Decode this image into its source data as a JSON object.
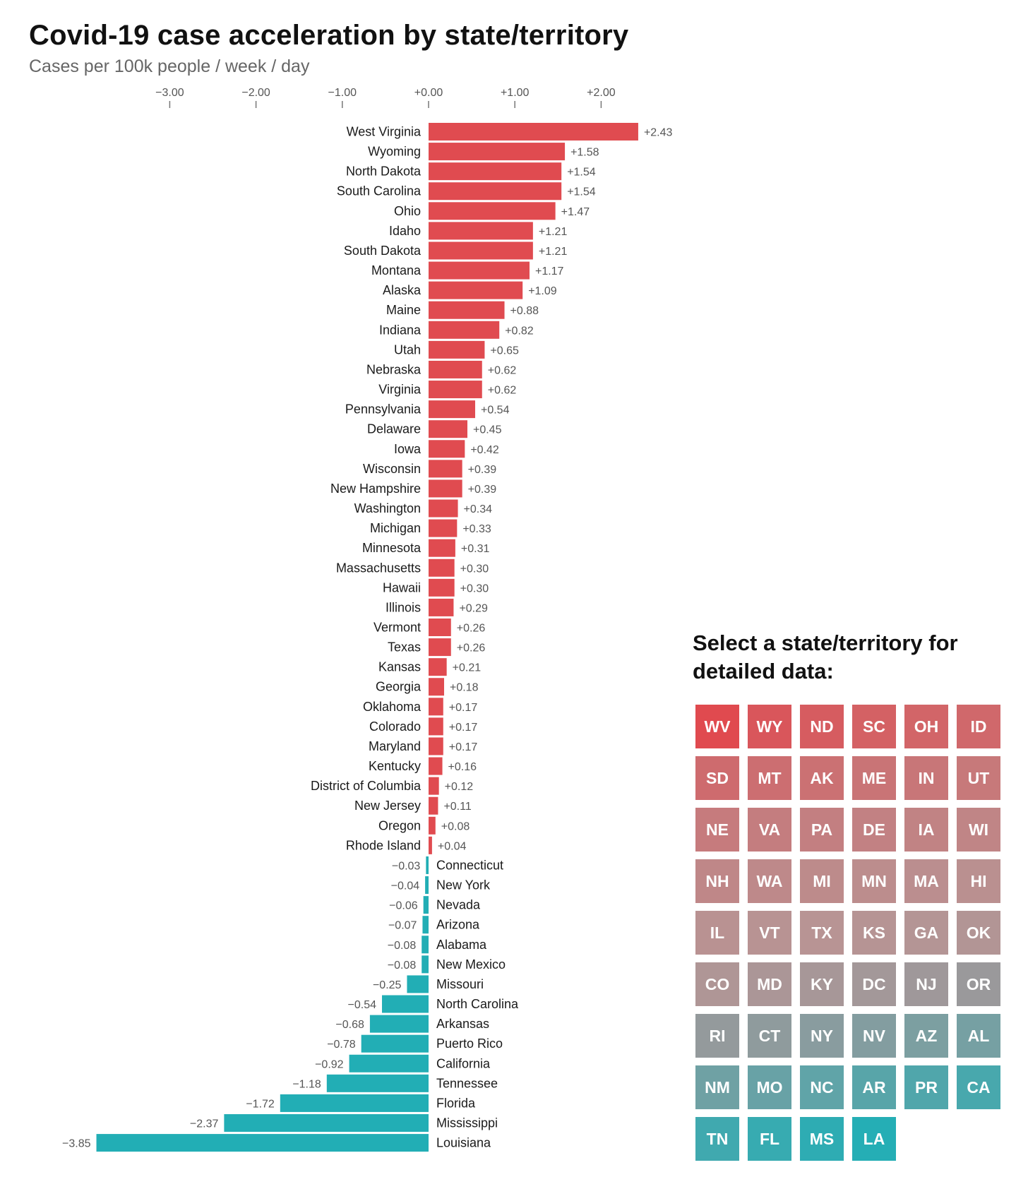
{
  "header": {
    "title": "Covid-19 case acceleration by state/territory",
    "subtitle": "Cases per 100k people / week / day"
  },
  "colors": {
    "positive": "#e04b50",
    "negative": "#22aeb5",
    "tile_high": "#e04a4f",
    "tile_mid": "#b89494",
    "tile_low": "#25aeb5"
  },
  "chart_data": {
    "type": "bar",
    "orientation": "horizontal",
    "xlim": [
      -3.85,
      2.43
    ],
    "xticks": [
      -3,
      -2,
      -1,
      0,
      1,
      2
    ],
    "xtick_labels": [
      "−3.00",
      "−2.00",
      "−1.00",
      "+0.00",
      "+1.00",
      "+2.00"
    ],
    "categories": [
      "West Virginia",
      "Wyoming",
      "North Dakota",
      "South Carolina",
      "Ohio",
      "Idaho",
      "South Dakota",
      "Montana",
      "Alaska",
      "Maine",
      "Indiana",
      "Utah",
      "Nebraska",
      "Virginia",
      "Pennsylvania",
      "Delaware",
      "Iowa",
      "Wisconsin",
      "New Hampshire",
      "Washington",
      "Michigan",
      "Minnesota",
      "Massachusetts",
      "Hawaii",
      "Illinois",
      "Vermont",
      "Texas",
      "Kansas",
      "Georgia",
      "Oklahoma",
      "Colorado",
      "Maryland",
      "Kentucky",
      "District of Columbia",
      "New Jersey",
      "Oregon",
      "Rhode Island",
      "Connecticut",
      "New York",
      "Nevada",
      "Arizona",
      "Alabama",
      "New Mexico",
      "Missouri",
      "North Carolina",
      "Arkansas",
      "Puerto Rico",
      "California",
      "Tennessee",
      "Florida",
      "Mississippi",
      "Louisiana"
    ],
    "values": [
      2.43,
      1.58,
      1.54,
      1.54,
      1.47,
      1.21,
      1.21,
      1.17,
      1.09,
      0.88,
      0.82,
      0.65,
      0.62,
      0.62,
      0.54,
      0.45,
      0.42,
      0.39,
      0.39,
      0.34,
      0.33,
      0.31,
      0.3,
      0.3,
      0.29,
      0.26,
      0.26,
      0.21,
      0.18,
      0.17,
      0.17,
      0.17,
      0.16,
      0.12,
      0.11,
      0.08,
      0.04,
      -0.03,
      -0.04,
      -0.06,
      -0.07,
      -0.08,
      -0.08,
      -0.25,
      -0.54,
      -0.68,
      -0.78,
      -0.92,
      -1.18,
      -1.72,
      -2.37,
      -3.85
    ],
    "value_labels": [
      "+2.43",
      "+1.58",
      "+1.54",
      "+1.54",
      "+1.47",
      "+1.21",
      "+1.21",
      "+1.17",
      "+1.09",
      "+0.88",
      "+0.82",
      "+0.65",
      "+0.62",
      "+0.62",
      "+0.54",
      "+0.45",
      "+0.42",
      "+0.39",
      "+0.39",
      "+0.34",
      "+0.33",
      "+0.31",
      "+0.30",
      "+0.30",
      "+0.29",
      "+0.26",
      "+0.26",
      "+0.21",
      "+0.18",
      "+0.17",
      "+0.17",
      "+0.17",
      "+0.16",
      "+0.12",
      "+0.11",
      "+0.08",
      "+0.04",
      "−0.03",
      "−0.04",
      "−0.06",
      "−0.07",
      "−0.08",
      "−0.08",
      "−0.25",
      "−0.54",
      "−0.68",
      "−0.78",
      "−0.92",
      "−1.18",
      "−1.72",
      "−2.37",
      "−3.85"
    ]
  },
  "selector": {
    "title": "Select a state/territory for detailed data:",
    "states": [
      {
        "code": "WV",
        "value": 2.43
      },
      {
        "code": "WY",
        "value": 1.58
      },
      {
        "code": "ND",
        "value": 1.54
      },
      {
        "code": "SC",
        "value": 1.54
      },
      {
        "code": "OH",
        "value": 1.47
      },
      {
        "code": "ID",
        "value": 1.21
      },
      {
        "code": "SD",
        "value": 1.21
      },
      {
        "code": "MT",
        "value": 1.17
      },
      {
        "code": "AK",
        "value": 1.09
      },
      {
        "code": "ME",
        "value": 0.88
      },
      {
        "code": "IN",
        "value": 0.82
      },
      {
        "code": "UT",
        "value": 0.65
      },
      {
        "code": "NE",
        "value": 0.62
      },
      {
        "code": "VA",
        "value": 0.62
      },
      {
        "code": "PA",
        "value": 0.54
      },
      {
        "code": "DE",
        "value": 0.45
      },
      {
        "code": "IA",
        "value": 0.42
      },
      {
        "code": "WI",
        "value": 0.39
      },
      {
        "code": "NH",
        "value": 0.39
      },
      {
        "code": "WA",
        "value": 0.34
      },
      {
        "code": "MI",
        "value": 0.33
      },
      {
        "code": "MN",
        "value": 0.31
      },
      {
        "code": "MA",
        "value": 0.3
      },
      {
        "code": "HI",
        "value": 0.3
      },
      {
        "code": "IL",
        "value": 0.29
      },
      {
        "code": "VT",
        "value": 0.26
      },
      {
        "code": "TX",
        "value": 0.26
      },
      {
        "code": "KS",
        "value": 0.21
      },
      {
        "code": "GA",
        "value": 0.18
      },
      {
        "code": "OK",
        "value": 0.17
      },
      {
        "code": "CO",
        "value": 0.17
      },
      {
        "code": "MD",
        "value": 0.17
      },
      {
        "code": "KY",
        "value": 0.16
      },
      {
        "code": "DC",
        "value": 0.12
      },
      {
        "code": "NJ",
        "value": 0.11
      },
      {
        "code": "OR",
        "value": 0.08
      },
      {
        "code": "RI",
        "value": 0.04
      },
      {
        "code": "CT",
        "value": -0.03
      },
      {
        "code": "NY",
        "value": -0.04
      },
      {
        "code": "NV",
        "value": -0.06
      },
      {
        "code": "AZ",
        "value": -0.07
      },
      {
        "code": "AL",
        "value": -0.08
      },
      {
        "code": "NM",
        "value": -0.08
      },
      {
        "code": "MO",
        "value": -0.25
      },
      {
        "code": "NC",
        "value": -0.54
      },
      {
        "code": "AR",
        "value": -0.68
      },
      {
        "code": "PR",
        "value": -0.78
      },
      {
        "code": "CA",
        "value": -0.92
      },
      {
        "code": "TN",
        "value": -1.18
      },
      {
        "code": "FL",
        "value": -1.72
      },
      {
        "code": "MS",
        "value": -2.37
      },
      {
        "code": "LA",
        "value": -3.85
      }
    ]
  }
}
